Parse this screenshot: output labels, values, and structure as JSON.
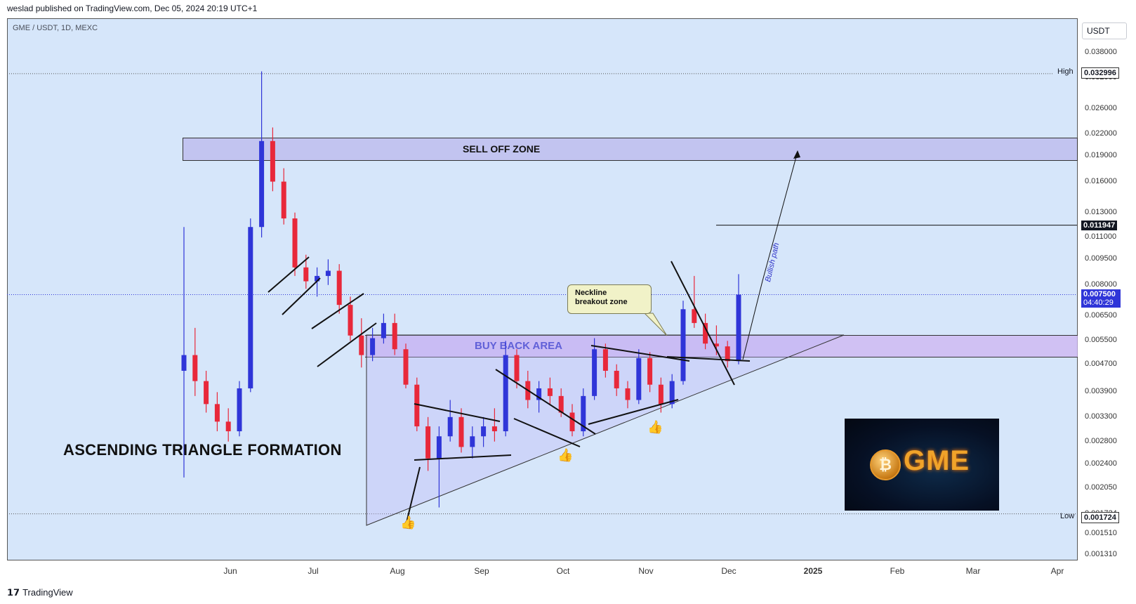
{
  "header": {
    "published": "weslad published on TradingView.com, Dec 05, 2024 20:19 UTC+1"
  },
  "symbol": {
    "label": "GME / USDT, 1D, MEXC"
  },
  "currency_button": "USDT",
  "footer": {
    "brand": "TradingView"
  },
  "annotations": {
    "pattern_title": "ASCENDING TRIANGLE FORMATION",
    "sell_zone": "SELL OFF ZONE",
    "buy_zone": "BUY BACK AREA",
    "callout_line1": "Neckline",
    "callout_line2": "breakout zone",
    "bullish_path": "Bullish path",
    "logo_text": "GME"
  },
  "chart_data": {
    "type": "candlestick",
    "title": "",
    "xlabel": "",
    "ylabel": "",
    "y_scale": "log",
    "ylim": [
      0.00131,
      0.04
    ],
    "x_ticks": [
      "Jun",
      "Jul",
      "Aug",
      "Sep",
      "Oct",
      "Nov",
      "Dec",
      "2025",
      "Feb",
      "Mar",
      "Apr"
    ],
    "y_ticks": [
      "0.038000",
      "0.032000",
      "0.026000",
      "0.022000",
      "0.019000",
      "0.016000",
      "0.013000",
      "0.011000",
      "0.009500",
      "0.008000",
      "0.006500",
      "0.005500",
      "0.004700",
      "0.003900",
      "0.003300",
      "0.002800",
      "0.002400",
      "0.002050",
      "0.001724",
      "0.001510",
      "0.001310"
    ],
    "price_labels": {
      "high_label": "High",
      "high_value": "0.032996",
      "low_label": "Low",
      "low_value": "0.001724",
      "level_value": "0.011947",
      "current_value": "0.007500",
      "countdown": "04:40:29"
    },
    "zones": {
      "sell_off": [
        0.0184,
        0.0222
      ],
      "buy_back": [
        0.0047,
        0.0056
      ]
    },
    "colors": {
      "up": "#2f35d8",
      "down": "#e8283a",
      "zone_sell": "#c2c4f0",
      "zone_buy": "#ceb4f0",
      "current_price": "#2f35d8"
    },
    "series": [
      {
        "name": "",
        "points": [
          [
            0.0045,
            0.0118,
            0.0022,
            0.005
          ],
          [
            0.005,
            0.006,
            0.0038,
            0.0042
          ],
          [
            0.0042,
            0.0045,
            0.0034,
            0.0036
          ],
          [
            0.0036,
            0.0039,
            0.003,
            0.0032
          ],
          [
            0.0032,
            0.0035,
            0.0028,
            0.003
          ],
          [
            0.003,
            0.0042,
            0.0029,
            0.004
          ],
          [
            0.004,
            0.0125,
            0.0039,
            0.0118
          ],
          [
            0.0118,
            0.0335,
            0.011,
            0.021
          ],
          [
            0.021,
            0.023,
            0.015,
            0.016
          ],
          [
            0.016,
            0.0175,
            0.012,
            0.0125
          ],
          [
            0.0125,
            0.013,
            0.0085,
            0.009
          ],
          [
            0.009,
            0.0098,
            0.0078,
            0.0082
          ],
          [
            0.0082,
            0.009,
            0.0074,
            0.0085
          ],
          [
            0.0085,
            0.0095,
            0.008,
            0.0088
          ],
          [
            0.0088,
            0.0092,
            0.0066,
            0.007
          ],
          [
            0.007,
            0.0074,
            0.0055,
            0.0057
          ],
          [
            0.0057,
            0.0064,
            0.0046,
            0.005
          ],
          [
            0.005,
            0.006,
            0.0048,
            0.0056
          ],
          [
            0.0056,
            0.0066,
            0.0054,
            0.0062
          ],
          [
            0.0062,
            0.0066,
            0.005,
            0.0052
          ],
          [
            0.0052,
            0.0054,
            0.004,
            0.0041
          ],
          [
            0.0041,
            0.0043,
            0.003,
            0.0031
          ],
          [
            0.0031,
            0.0033,
            0.0023,
            0.0025
          ],
          [
            0.0025,
            0.0031,
            0.0018,
            0.0029
          ],
          [
            0.0029,
            0.0037,
            0.0028,
            0.0033
          ],
          [
            0.0033,
            0.0035,
            0.0026,
            0.0027
          ],
          [
            0.0027,
            0.0031,
            0.0025,
            0.0029
          ],
          [
            0.0029,
            0.0033,
            0.0027,
            0.0031
          ],
          [
            0.0031,
            0.0035,
            0.0028,
            0.003
          ],
          [
            0.003,
            0.0055,
            0.0029,
            0.005
          ],
          [
            0.005,
            0.0052,
            0.004,
            0.0042
          ],
          [
            0.0042,
            0.0045,
            0.0035,
            0.0037
          ],
          [
            0.0037,
            0.0042,
            0.0034,
            0.004
          ],
          [
            0.004,
            0.0043,
            0.0036,
            0.0038
          ],
          [
            0.0038,
            0.004,
            0.0033,
            0.0034
          ],
          [
            0.0034,
            0.0036,
            0.0029,
            0.003
          ],
          [
            0.003,
            0.004,
            0.0029,
            0.0038
          ],
          [
            0.0038,
            0.0056,
            0.0037,
            0.0052
          ],
          [
            0.0052,
            0.0054,
            0.0043,
            0.0045
          ],
          [
            0.0045,
            0.0047,
            0.0038,
            0.004
          ],
          [
            0.004,
            0.0042,
            0.0035,
            0.0037
          ],
          [
            0.0037,
            0.0052,
            0.0036,
            0.0049
          ],
          [
            0.0049,
            0.0051,
            0.0039,
            0.0041
          ],
          [
            0.0041,
            0.0043,
            0.0034,
            0.0036
          ],
          [
            0.0036,
            0.0044,
            0.0035,
            0.0042
          ],
          [
            0.0042,
            0.0072,
            0.0041,
            0.0068
          ],
          [
            0.0068,
            0.0085,
            0.006,
            0.0062
          ],
          [
            0.0062,
            0.0066,
            0.0052,
            0.0054
          ],
          [
            0.0054,
            0.0061,
            0.005,
            0.0053
          ],
          [
            0.0053,
            0.0055,
            0.0046,
            0.0048
          ],
          [
            0.0048,
            0.0086,
            0.0047,
            0.0075
          ]
        ]
      }
    ]
  }
}
